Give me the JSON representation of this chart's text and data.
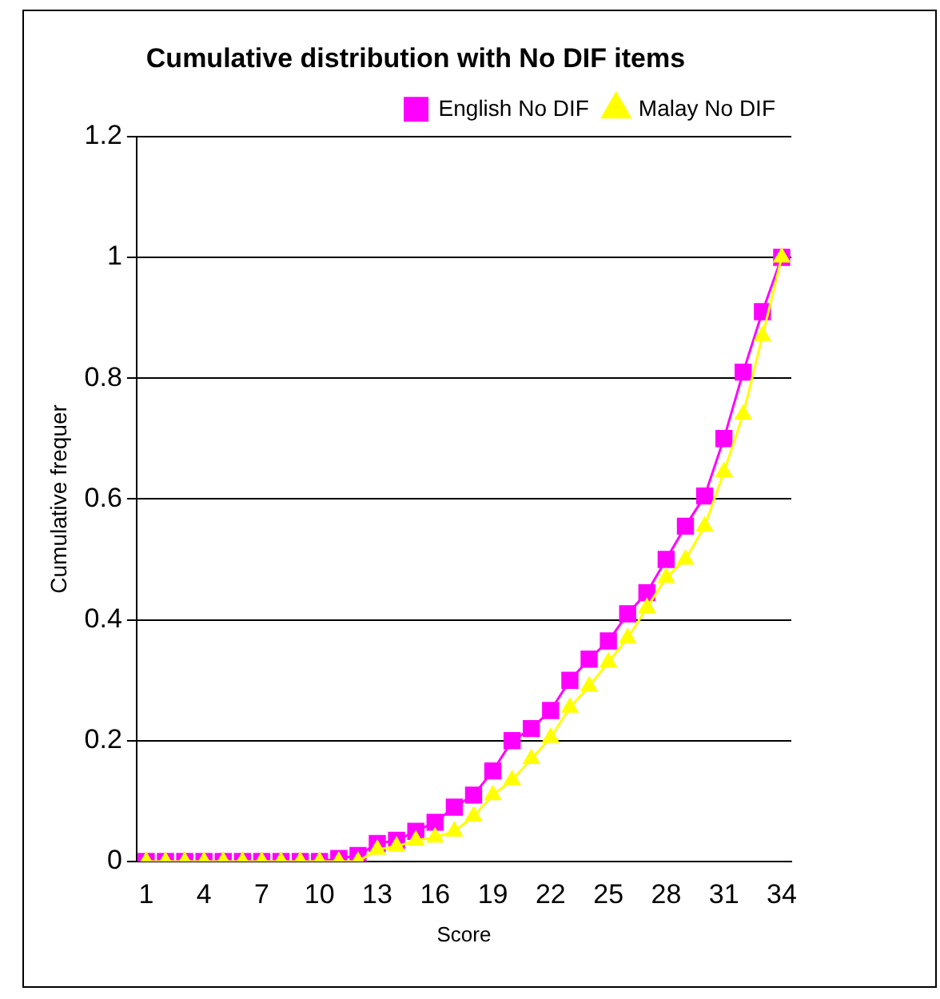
{
  "chart_data": {
    "type": "line",
    "title": "Cumulative distribution with No DIF items",
    "xlabel": "Score",
    "ylabel": "Cumulative frequer",
    "categories": [
      "1",
      null,
      null,
      "4",
      null,
      null,
      "7",
      null,
      null,
      "10",
      null,
      null,
      "13",
      null,
      null,
      "16",
      null,
      null,
      "19",
      null,
      null,
      "22",
      null,
      null,
      "25",
      null,
      null,
      "28",
      null,
      null,
      "31",
      null,
      null,
      "34"
    ],
    "series": [
      {
        "name": "English No DIF",
        "color": "#ff00ff",
        "marker": "square",
        "values": [
          0,
          0,
          0,
          0,
          0,
          0,
          0,
          0,
          0,
          0,
          0.005,
          0.01,
          0.03,
          0.035,
          0.05,
          0.065,
          0.09,
          0.11,
          0.15,
          0.2,
          0.22,
          0.25,
          0.3,
          0.335,
          0.365,
          0.41,
          0.445,
          0.5,
          0.555,
          0.605,
          0.7,
          0.81,
          0.91,
          1.0
        ]
      },
      {
        "name": "Malay No DIF",
        "color": "#ffff00",
        "marker": "triangle",
        "values": [
          0,
          0,
          0,
          0,
          0,
          0,
          0,
          0,
          0,
          0,
          0,
          0,
          0.02,
          0.025,
          0.035,
          0.04,
          0.05,
          0.075,
          0.11,
          0.135,
          0.17,
          0.205,
          0.255,
          0.29,
          0.33,
          0.37,
          0.42,
          0.47,
          0.5,
          0.555,
          0.645,
          0.74,
          0.87,
          1.0
        ]
      }
    ],
    "ylim": [
      0,
      1.2
    ],
    "yticks": [
      0,
      0.2,
      0.4,
      0.6,
      0.8,
      1,
      1.2
    ],
    "grid": "y",
    "legend": "top right",
    "line_style": "solid"
  }
}
